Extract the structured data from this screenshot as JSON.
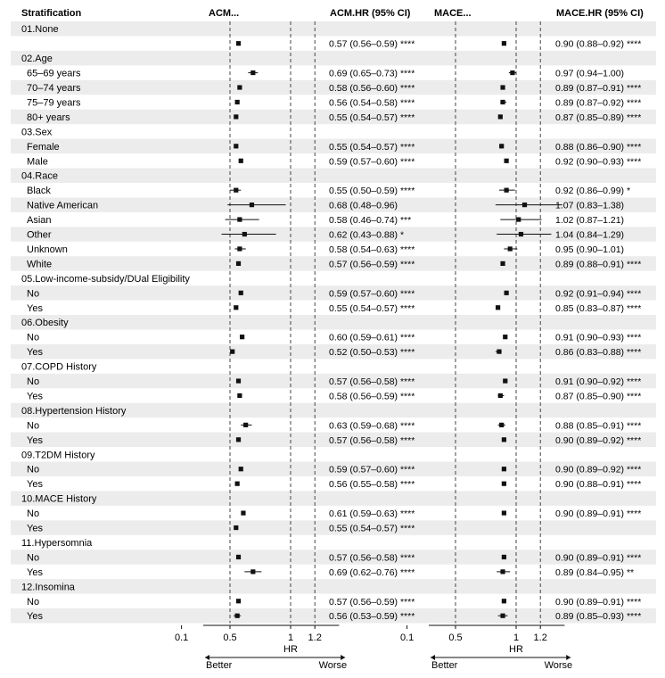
{
  "chart_data": {
    "type": "forest",
    "columns": {
      "stratification": "Stratification",
      "acm_plot": "ACM...",
      "acm_hr": "ACM.HR (95% CI)",
      "mace_plot": "MACE...",
      "mace_hr": "MACE.HR (95% CI)"
    },
    "x_axis": {
      "label": "HR",
      "ticks": [
        0.1,
        0.5,
        1,
        1.2
      ],
      "tick_labels": [
        "0.1",
        "0.5",
        "1",
        "1.2"
      ],
      "reference_lines": [
        0.5,
        1,
        1.2
      ],
      "left_annotation": "Better",
      "right_annotation": "Worse"
    },
    "rows": [
      {
        "label": "01.None",
        "header": true
      },
      {
        "label": "",
        "acm": [
          0.57,
          0.56,
          0.59
        ],
        "acm_text": "0.57 (0.56–0.59) ****",
        "mace": [
          0.9,
          0.88,
          0.92
        ],
        "mace_text": "0.90 (0.88–0.92) ****"
      },
      {
        "label": "02.Age",
        "header": true
      },
      {
        "label": "65–69 years",
        "acm": [
          0.69,
          0.65,
          0.73
        ],
        "acm_text": "0.69 (0.65–0.73) ****",
        "mace": [
          0.97,
          0.94,
          1.0
        ],
        "mace_text": "0.97 (0.94–1.00)"
      },
      {
        "label": "70–74 years",
        "acm": [
          0.58,
          0.56,
          0.6
        ],
        "acm_text": "0.58 (0.56–0.60) ****",
        "mace": [
          0.89,
          0.87,
          0.91
        ],
        "mace_text": "0.89 (0.87–0.91) ****"
      },
      {
        "label": "75–79 years",
        "acm": [
          0.56,
          0.54,
          0.58
        ],
        "acm_text": "0.56 (0.54–0.58) ****",
        "mace": [
          0.89,
          0.87,
          0.92
        ],
        "mace_text": "0.89 (0.87–0.92) ****"
      },
      {
        "label": "80+ years",
        "acm": [
          0.55,
          0.54,
          0.57
        ],
        "acm_text": "0.55 (0.54–0.57) ****",
        "mace": [
          0.87,
          0.85,
          0.89
        ],
        "mace_text": "0.87 (0.85–0.89) ****"
      },
      {
        "label": "03.Sex",
        "header": true
      },
      {
        "label": "Female",
        "acm": [
          0.55,
          0.54,
          0.57
        ],
        "acm_text": "0.55 (0.54–0.57) ****",
        "mace": [
          0.88,
          0.86,
          0.9
        ],
        "mace_text": "0.88 (0.86–0.90) ****"
      },
      {
        "label": "Male",
        "acm": [
          0.59,
          0.57,
          0.6
        ],
        "acm_text": "0.59 (0.57–0.60) ****",
        "mace": [
          0.92,
          0.9,
          0.93
        ],
        "mace_text": "0.92 (0.90–0.93) ****"
      },
      {
        "label": "04.Race",
        "header": true
      },
      {
        "label": "Black",
        "acm": [
          0.55,
          0.5,
          0.59
        ],
        "acm_text": "0.55 (0.50–0.59) ****",
        "mace": [
          0.92,
          0.86,
          0.99
        ],
        "mace_text": "0.92 (0.86–0.99) *"
      },
      {
        "label": "Native American",
        "acm": [
          0.68,
          0.48,
          0.96
        ],
        "acm_text": "0.68 (0.48–0.96)",
        "mace": [
          1.07,
          0.83,
          1.38
        ],
        "mace_text": "1.07 (0.83–1.38)"
      },
      {
        "label": "Asian",
        "acm": [
          0.58,
          0.46,
          0.74
        ],
        "acm_text": "0.58 (0.46–0.74) ***",
        "mace": [
          1.02,
          0.87,
          1.21
        ],
        "mace_text": "1.02 (0.87–1.21)"
      },
      {
        "label": "Other",
        "acm": [
          0.62,
          0.43,
          0.88
        ],
        "acm_text": "0.62 (0.43–0.88) *",
        "mace": [
          1.04,
          0.84,
          1.29
        ],
        "mace_text": "1.04 (0.84–1.29)"
      },
      {
        "label": "Unknown",
        "acm": [
          0.58,
          0.54,
          0.63
        ],
        "acm_text": "0.58 (0.54–0.63) ****",
        "mace": [
          0.95,
          0.9,
          1.01
        ],
        "mace_text": "0.95 (0.90–1.01)"
      },
      {
        "label": "White",
        "acm": [
          0.57,
          0.56,
          0.59
        ],
        "acm_text": "0.57 (0.56–0.59) ****",
        "mace": [
          0.89,
          0.88,
          0.91
        ],
        "mace_text": "0.89 (0.88–0.91) ****"
      },
      {
        "label": "05.Low-income-subsidy/DUal Eligibility",
        "header": true
      },
      {
        "label": "No",
        "acm": [
          0.59,
          0.57,
          0.6
        ],
        "acm_text": "0.59 (0.57–0.60) ****",
        "mace": [
          0.92,
          0.91,
          0.94
        ],
        "mace_text": "0.92 (0.91–0.94) ****"
      },
      {
        "label": "Yes",
        "acm": [
          0.55,
          0.54,
          0.57
        ],
        "acm_text": "0.55 (0.54–0.57) ****",
        "mace": [
          0.85,
          0.83,
          0.87
        ],
        "mace_text": "0.85 (0.83–0.87) ****"
      },
      {
        "label": "06.Obesity",
        "header": true
      },
      {
        "label": "No",
        "acm": [
          0.6,
          0.59,
          0.61
        ],
        "acm_text": "0.60 (0.59–0.61) ****",
        "mace": [
          0.91,
          0.9,
          0.93
        ],
        "mace_text": "0.91 (0.90–0.93) ****"
      },
      {
        "label": "Yes",
        "acm": [
          0.52,
          0.5,
          0.53
        ],
        "acm_text": "0.52 (0.50–0.53) ****",
        "mace": [
          0.86,
          0.83,
          0.88
        ],
        "mace_text": "0.86 (0.83–0.88) ****"
      },
      {
        "label": "07.COPD History",
        "header": true
      },
      {
        "label": "No",
        "acm": [
          0.57,
          0.56,
          0.58
        ],
        "acm_text": "0.57 (0.56–0.58) ****",
        "mace": [
          0.91,
          0.9,
          0.92
        ],
        "mace_text": "0.91 (0.90–0.92) ****"
      },
      {
        "label": "Yes",
        "acm": [
          0.58,
          0.56,
          0.59
        ],
        "acm_text": "0.58 (0.56–0.59) ****",
        "mace": [
          0.87,
          0.85,
          0.9
        ],
        "mace_text": "0.87 (0.85–0.90) ****"
      },
      {
        "label": "08.Hypertension History",
        "header": true
      },
      {
        "label": "No",
        "acm": [
          0.63,
          0.59,
          0.68
        ],
        "acm_text": "0.63 (0.59–0.68) ****",
        "mace": [
          0.88,
          0.85,
          0.91
        ],
        "mace_text": "0.88 (0.85–0.91) ****"
      },
      {
        "label": "Yes",
        "acm": [
          0.57,
          0.56,
          0.58
        ],
        "acm_text": "0.57 (0.56–0.58) ****",
        "mace": [
          0.9,
          0.89,
          0.92
        ],
        "mace_text": "0.90 (0.89–0.92) ****"
      },
      {
        "label": "09.T2DM History",
        "header": true
      },
      {
        "label": "No",
        "acm": [
          0.59,
          0.57,
          0.6
        ],
        "acm_text": "0.59 (0.57–0.60) ****",
        "mace": [
          0.9,
          0.89,
          0.92
        ],
        "mace_text": "0.90 (0.89–0.92) ****"
      },
      {
        "label": "Yes",
        "acm": [
          0.56,
          0.55,
          0.58
        ],
        "acm_text": "0.56 (0.55–0.58) ****",
        "mace": [
          0.9,
          0.88,
          0.91
        ],
        "mace_text": "0.90 (0.88–0.91) ****"
      },
      {
        "label": "10.MACE History",
        "header": true
      },
      {
        "label": "No",
        "acm": [
          0.61,
          0.59,
          0.63
        ],
        "acm_text": "0.61 (0.59–0.63) ****",
        "mace": [
          0.9,
          0.89,
          0.91
        ],
        "mace_text": "0.90 (0.89–0.91) ****"
      },
      {
        "label": "Yes",
        "acm": [
          0.55,
          0.54,
          0.57
        ],
        "acm_text": "0.55 (0.54–0.57) ****",
        "mace": null,
        "mace_text": ""
      },
      {
        "label": "11.Hypersomnia",
        "header": true
      },
      {
        "label": "No",
        "acm": [
          0.57,
          0.56,
          0.58
        ],
        "acm_text": "0.57 (0.56–0.58) ****",
        "mace": [
          0.9,
          0.89,
          0.91
        ],
        "mace_text": "0.90 (0.89–0.91) ****"
      },
      {
        "label": "Yes",
        "acm": [
          0.69,
          0.62,
          0.76
        ],
        "acm_text": "0.69 (0.62–0.76) ****",
        "mace": [
          0.89,
          0.84,
          0.95
        ],
        "mace_text": "0.89 (0.84–0.95) **"
      },
      {
        "label": "12.Insomina",
        "header": true
      },
      {
        "label": "No",
        "acm": [
          0.57,
          0.56,
          0.59
        ],
        "acm_text": "0.57 (0.56–0.59) ****",
        "mace": [
          0.9,
          0.89,
          0.91
        ],
        "mace_text": "0.90 (0.89–0.91) ****"
      },
      {
        "label": "Yes",
        "acm": [
          0.56,
          0.53,
          0.59
        ],
        "acm_text": "0.56 (0.53–0.59) ****",
        "mace": [
          0.89,
          0.85,
          0.93
        ],
        "mace_text": "0.89 (0.85–0.93) ****"
      }
    ]
  }
}
